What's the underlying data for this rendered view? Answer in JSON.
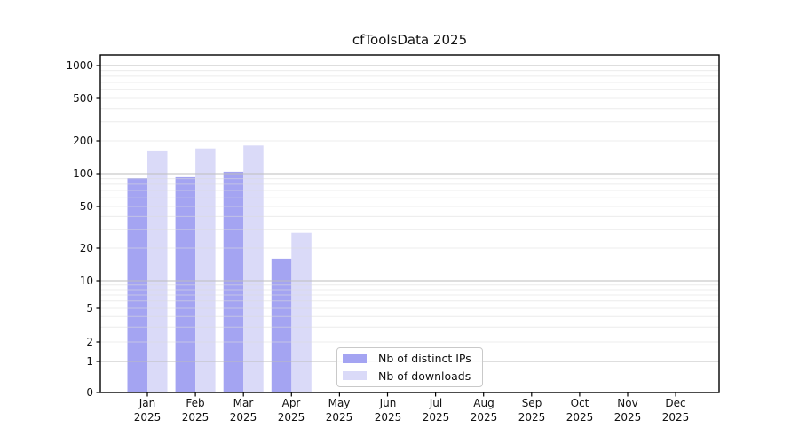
{
  "chart_data": {
    "type": "bar",
    "title": "cfToolsData 2025",
    "yscale": "symlog",
    "grid": "on",
    "legend_position": "lower-center-inside",
    "yticks": [
      0,
      1,
      2,
      5,
      10,
      20,
      50,
      100,
      200,
      500,
      1000
    ],
    "ylim": [
      0,
      1250
    ],
    "categories": [
      "Jan 2025",
      "Feb 2025",
      "Mar 2025",
      "Apr 2025",
      "May 2025",
      "Jun 2025",
      "Jul 2025",
      "Aug 2025",
      "Sep 2025",
      "Oct 2025",
      "Nov 2025",
      "Dec 2025"
    ],
    "series": [
      {
        "name": "Nb of distinct IPs",
        "color": "#a4a4f2",
        "values": [
          91,
          93,
          104,
          16,
          0,
          0,
          0,
          0,
          0,
          0,
          0,
          0
        ]
      },
      {
        "name": "Nb of downloads",
        "color": "#dadaf8",
        "values": [
          163,
          170,
          181,
          28,
          0,
          0,
          0,
          0,
          0,
          0,
          0,
          0
        ]
      }
    ]
  }
}
